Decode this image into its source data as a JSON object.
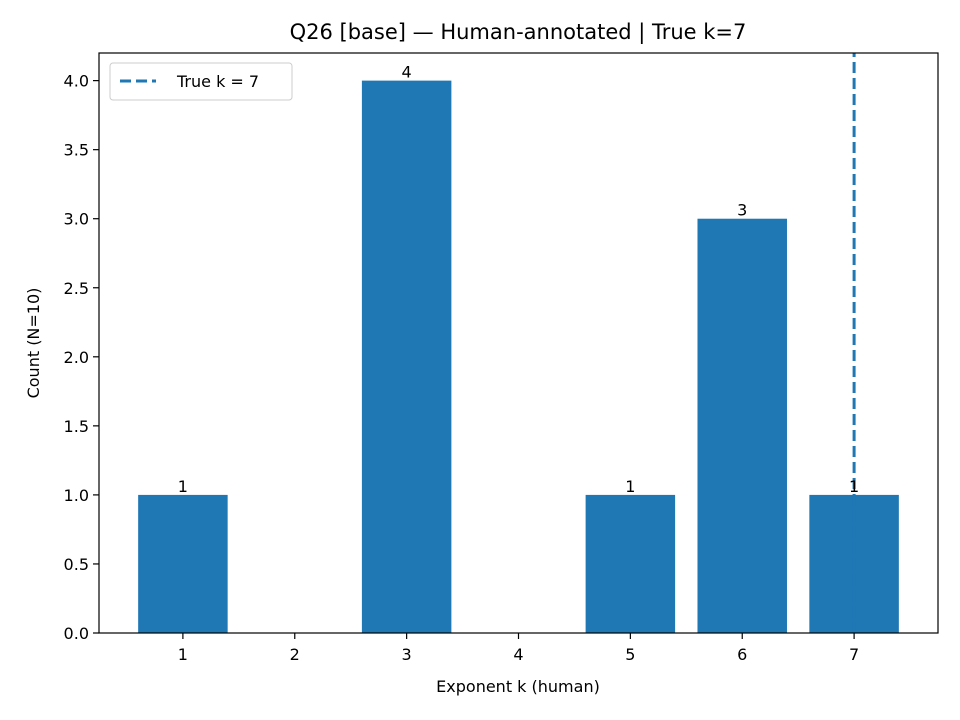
{
  "chart_data": {
    "type": "bar",
    "title": "Q26 [base] — Human-annotated | True k=7",
    "xlabel": "Exponent k (human)",
    "ylabel": "Count (N=10)",
    "categories": [
      "1",
      "2",
      "3",
      "4",
      "5",
      "6",
      "7"
    ],
    "x": [
      1,
      2,
      3,
      4,
      5,
      6,
      7
    ],
    "values": [
      1,
      0,
      4,
      0,
      1,
      3,
      1
    ],
    "bar_labels": [
      "1",
      "",
      "4",
      "",
      "1",
      "3",
      "1"
    ],
    "xlim": [
      0.25,
      7.75
    ],
    "ylim": [
      0,
      4.2
    ],
    "yticks": [
      0.0,
      0.5,
      1.0,
      1.5,
      2.0,
      2.5,
      3.0,
      3.5,
      4.0
    ],
    "ytick_labels": [
      "0.0",
      "0.5",
      "1.0",
      "1.5",
      "2.0",
      "2.5",
      "3.0",
      "3.5",
      "4.0"
    ],
    "bar_color": "#1f77b4",
    "reference_line": {
      "x": 7,
      "label": "True k = 7",
      "style": "dashed",
      "color": "#1f77b4"
    },
    "legend": {
      "position": "upper-left",
      "entries": [
        "True k = 7"
      ]
    },
    "grid": false
  }
}
